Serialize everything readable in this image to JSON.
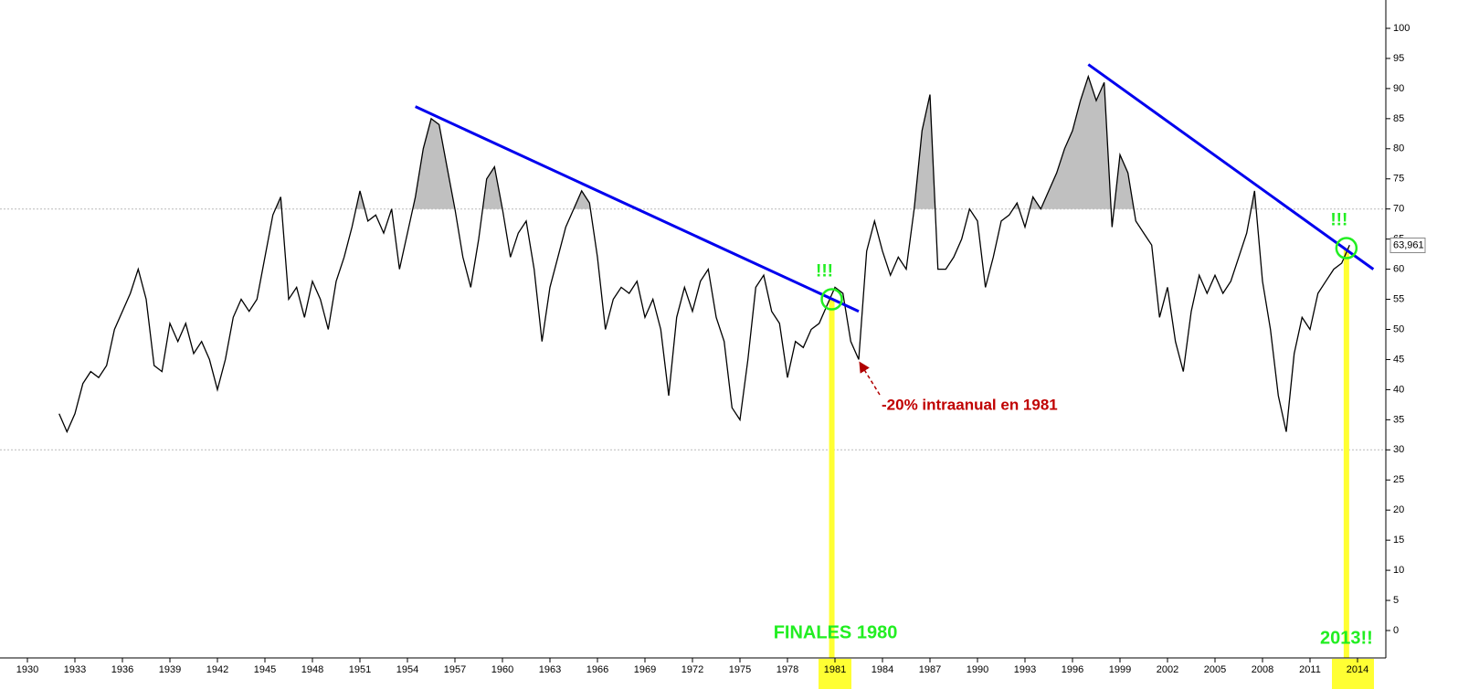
{
  "chart_data": {
    "type": "line",
    "color": "#000000",
    "x": [
      1932,
      1932.5,
      1933,
      1933.5,
      1934,
      1934.5,
      1935,
      1935.5,
      1936,
      1936.5,
      1937,
      1937.5,
      1938,
      1938.5,
      1939,
      1939.5,
      1940,
      1940.5,
      1941,
      1941.5,
      1942,
      1942.5,
      1943,
      1943.5,
      1944,
      1944.5,
      1945,
      1945.5,
      1946,
      1946.5,
      1947,
      1947.5,
      1948,
      1948.5,
      1949,
      1949.5,
      1950,
      1950.5,
      1951,
      1951.5,
      1952,
      1952.5,
      1953,
      1953.5,
      1954,
      1954.5,
      1955,
      1955.5,
      1956,
      1956.5,
      1957,
      1957.5,
      1958,
      1958.5,
      1959,
      1959.5,
      1960,
      1960.5,
      1961,
      1961.5,
      1962,
      1962.5,
      1963,
      1963.5,
      1964,
      1964.5,
      1965,
      1965.5,
      1966,
      1966.5,
      1967,
      1967.5,
      1968,
      1968.5,
      1969,
      1969.5,
      1970,
      1970.5,
      1971,
      1971.5,
      1972,
      1972.5,
      1973,
      1973.5,
      1974,
      1974.5,
      1975,
      1975.5,
      1976,
      1976.5,
      1977,
      1977.5,
      1978,
      1978.5,
      1979,
      1979.5,
      1980,
      1980.5,
      1981,
      1981.5,
      1982,
      1982.5,
      1983,
      1983.5,
      1984,
      1984.5,
      1985,
      1985.5,
      1986,
      1986.5,
      1987,
      1987.5,
      1988,
      1988.5,
      1989,
      1989.5,
      1990,
      1990.5,
      1991,
      1991.5,
      1992,
      1992.5,
      1993,
      1993.5,
      1994,
      1994.5,
      1995,
      1995.5,
      1996,
      1996.5,
      1997,
      1997.5,
      1998,
      1998.5,
      1999,
      1999.5,
      2000,
      2000.5,
      2001,
      2001.5,
      2002,
      2002.5,
      2003,
      2003.5,
      2004,
      2004.5,
      2005,
      2005.5,
      2006,
      2006.5,
      2007,
      2007.5,
      2008,
      2008.5,
      2009,
      2009.5,
      2010,
      2010.5,
      2011,
      2011.5,
      2012,
      2012.5,
      2013,
      2013.5
    ],
    "values": [
      36,
      33,
      36,
      41,
      43,
      42,
      44,
      50,
      53,
      56,
      60,
      55,
      44,
      43,
      51,
      48,
      51,
      46,
      48,
      45,
      40,
      45,
      52,
      55,
      53,
      55,
      62,
      69,
      72,
      55,
      57,
      52,
      58,
      55,
      50,
      58,
      62,
      67,
      73,
      68,
      69,
      66,
      70,
      60,
      66,
      72,
      80,
      85,
      84,
      77,
      70,
      62,
      57,
      65,
      75,
      77,
      70,
      62,
      66,
      68,
      60,
      48,
      57,
      62,
      67,
      70,
      73,
      71,
      62,
      50,
      55,
      57,
      56,
      58,
      52,
      55,
      50,
      39,
      52,
      57,
      53,
      58,
      60,
      52,
      48,
      37,
      35,
      45,
      57,
      59,
      53,
      51,
      42,
      48,
      47,
      50,
      51,
      54,
      57,
      56,
      48,
      45,
      63,
      68,
      63,
      59,
      62,
      60,
      70,
      83,
      89,
      60,
      60,
      62,
      65,
      70,
      68,
      57,
      62,
      68,
      69,
      71,
      67,
      72,
      70,
      73,
      76,
      80,
      83,
      88,
      92,
      88,
      91,
      67,
      79,
      76,
      68,
      66,
      64,
      52,
      57,
      48,
      43,
      53,
      59,
      56,
      59,
      56,
      58,
      62,
      66,
      73,
      58,
      50,
      39,
      33,
      46,
      52,
      50,
      56,
      58,
      60,
      61,
      64
    ],
    "last_value_label": {
      "value": 63.961,
      "label": "63,961"
    },
    "shade_above": 70,
    "shade_color": "#c0c0c0",
    "hlines": [
      70,
      30
    ],
    "xlim": [
      1930,
      2014
    ],
    "xticks": [
      1930,
      1933,
      1936,
      1939,
      1942,
      1945,
      1948,
      1951,
      1954,
      1957,
      1960,
      1963,
      1966,
      1969,
      1972,
      1975,
      1978,
      1981,
      1984,
      1987,
      1990,
      1993,
      1996,
      1999,
      2002,
      2005,
      2008,
      2011,
      2014
    ],
    "highlight_ticks": [
      1981,
      2014
    ],
    "ylim": [
      0,
      100
    ],
    "yticks": [
      0,
      5,
      10,
      15,
      20,
      25,
      30,
      35,
      40,
      45,
      50,
      55,
      60,
      65,
      70,
      75,
      80,
      85,
      90,
      95,
      100
    ],
    "trendlines": [
      {
        "x": [
          1954.5,
          1982.5
        ],
        "y": [
          87,
          53
        ],
        "color": "#0000ee"
      },
      {
        "x": [
          1997,
          2015
        ],
        "y": [
          94,
          60
        ],
        "color": "#0000ee"
      }
    ],
    "highlights": [
      {
        "x": 1980.8,
        "y": 55,
        "label": "!!!",
        "caption": "FINALES 1980"
      },
      {
        "x": 2013.3,
        "y": 63.5,
        "label": "!!!",
        "caption": "2013!!"
      }
    ],
    "annotation": "-20% intraanual en 1981"
  }
}
